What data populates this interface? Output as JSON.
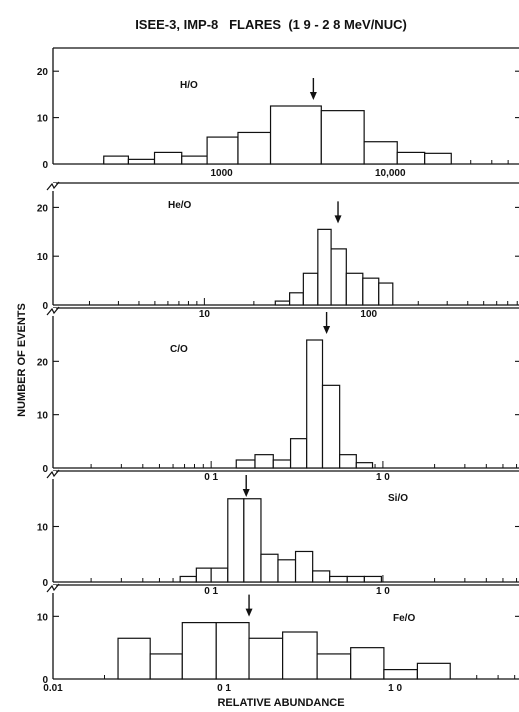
{
  "chart_data": {
    "type": "histogram",
    "title": "ISEE-3, IMP-8   FLARES  (1 9 - 2 8 MeV/NUC)",
    "ylabel": "NUMBER OF EVENTS",
    "xlabel": "RELATIVE ABUNDANCE",
    "x_scale": "log",
    "panels": [
      {
        "label": "H/O",
        "x_ticks": [
          {
            "value": 1000,
            "label": "1000"
          },
          {
            "value": 10000,
            "label": "10,000"
          }
        ],
        "y_ticks": [
          {
            "value": 0,
            "label": "0"
          },
          {
            "value": 10,
            "label": "10"
          },
          {
            "value": 20,
            "label": "20"
          }
        ],
        "ylim": [
          0,
          25
        ],
        "arrow_at": 3500,
        "bins": [
          {
            "from": 200,
            "to": 280,
            "count": 1.7
          },
          {
            "from": 280,
            "to": 400,
            "count": 1
          },
          {
            "from": 400,
            "to": 580,
            "count": 2.5
          },
          {
            "from": 580,
            "to": 820,
            "count": 1.7
          },
          {
            "from": 820,
            "to": 1250,
            "count": 5.8
          },
          {
            "from": 1250,
            "to": 1950,
            "count": 6.8
          },
          {
            "from": 1950,
            "to": 3900,
            "count": 12.5
          },
          {
            "from": 3900,
            "to": 7000,
            "count": 11.5
          },
          {
            "from": 7000,
            "to": 11000,
            "count": 4.8
          },
          {
            "from": 11000,
            "to": 16000,
            "count": 2.5
          },
          {
            "from": 16000,
            "to": 23000,
            "count": 2.3
          }
        ]
      },
      {
        "label": "He/O",
        "x_ticks": [
          {
            "value": 10,
            "label": "10"
          },
          {
            "value": 100,
            "label": "100"
          }
        ],
        "y_ticks": [
          {
            "value": 0,
            "label": "0"
          },
          {
            "value": 10,
            "label": "10"
          },
          {
            "value": 20,
            "label": "20"
          }
        ],
        "ylim": [
          0,
          25
        ],
        "arrow_at": 65,
        "bins": [
          {
            "from": 27,
            "to": 33,
            "count": 0.8
          },
          {
            "from": 33,
            "to": 40,
            "count": 2.5
          },
          {
            "from": 40,
            "to": 49,
            "count": 6.5
          },
          {
            "from": 49,
            "to": 59,
            "count": 15.5
          },
          {
            "from": 59,
            "to": 73,
            "count": 11.5
          },
          {
            "from": 73,
            "to": 92,
            "count": 6.5
          },
          {
            "from": 92,
            "to": 115,
            "count": 5.5
          },
          {
            "from": 115,
            "to": 140,
            "count": 4.5
          }
        ]
      },
      {
        "label": "C/O",
        "x_ticks": [
          {
            "value": 0.1,
            "label": "0 1"
          },
          {
            "value": 1,
            "label": "1 0"
          }
        ],
        "y_ticks": [
          {
            "value": 0,
            "label": "0"
          },
          {
            "value": 10,
            "label": "10"
          },
          {
            "value": 20,
            "label": "20"
          }
        ],
        "ylim": [
          0,
          30
        ],
        "arrow_at": 0.47,
        "bins": [
          {
            "from": 0.14,
            "to": 0.18,
            "count": 1.5
          },
          {
            "from": 0.18,
            "to": 0.23,
            "count": 2.5
          },
          {
            "from": 0.23,
            "to": 0.29,
            "count": 1.5
          },
          {
            "from": 0.29,
            "to": 0.36,
            "count": 5.5
          },
          {
            "from": 0.36,
            "to": 0.445,
            "count": 24
          },
          {
            "from": 0.445,
            "to": 0.56,
            "count": 15.5
          },
          {
            "from": 0.56,
            "to": 0.7,
            "count": 2.5
          },
          {
            "from": 0.7,
            "to": 0.87,
            "count": 1
          }
        ]
      },
      {
        "label": "Si/O",
        "x_ticks": [
          {
            "value": 0.1,
            "label": "0 1"
          },
          {
            "value": 1,
            "label": "1 0"
          }
        ],
        "y_ticks": [
          {
            "value": 0,
            "label": "0"
          },
          {
            "value": 10,
            "label": "10"
          }
        ],
        "ylim": [
          0,
          20
        ],
        "arrow_at": 0.16,
        "bins": [
          {
            "from": 0.066,
            "to": 0.082,
            "count": 1
          },
          {
            "from": 0.082,
            "to": 0.1,
            "count": 2.5
          },
          {
            "from": 0.1,
            "to": 0.125,
            "count": 2.5
          },
          {
            "from": 0.125,
            "to": 0.155,
            "count": 15
          },
          {
            "from": 0.155,
            "to": 0.195,
            "count": 15
          },
          {
            "from": 0.195,
            "to": 0.245,
            "count": 5
          },
          {
            "from": 0.245,
            "to": 0.31,
            "count": 4
          },
          {
            "from": 0.31,
            "to": 0.39,
            "count": 5.5
          },
          {
            "from": 0.39,
            "to": 0.49,
            "count": 2
          },
          {
            "from": 0.49,
            "to": 0.62,
            "count": 1
          },
          {
            "from": 0.62,
            "to": 0.78,
            "count": 1
          },
          {
            "from": 0.78,
            "to": 0.98,
            "count": 1
          }
        ]
      },
      {
        "label": "Fe/O",
        "x_ticks": [
          {
            "value": 0.01,
            "label": "0.01"
          },
          {
            "value": 0.1,
            "label": "0 1"
          },
          {
            "value": 1,
            "label": "1 0"
          }
        ],
        "y_ticks": [
          {
            "value": 0,
            "label": "0"
          },
          {
            "value": 10,
            "label": "10"
          }
        ],
        "ylim": [
          0,
          15
        ],
        "arrow_at": 0.14,
        "bins": [
          {
            "from": 0.024,
            "to": 0.037,
            "count": 6.5
          },
          {
            "from": 0.037,
            "to": 0.057,
            "count": 4
          },
          {
            "from": 0.057,
            "to": 0.09,
            "count": 9
          },
          {
            "from": 0.09,
            "to": 0.14,
            "count": 9
          },
          {
            "from": 0.14,
            "to": 0.22,
            "count": 6.5
          },
          {
            "from": 0.22,
            "to": 0.35,
            "count": 7.5
          },
          {
            "from": 0.35,
            "to": 0.55,
            "count": 4
          },
          {
            "from": 0.55,
            "to": 0.86,
            "count": 5
          },
          {
            "from": 0.86,
            "to": 1.35,
            "count": 1.5
          },
          {
            "from": 1.35,
            "to": 2.1,
            "count": 2.5
          }
        ]
      }
    ]
  }
}
